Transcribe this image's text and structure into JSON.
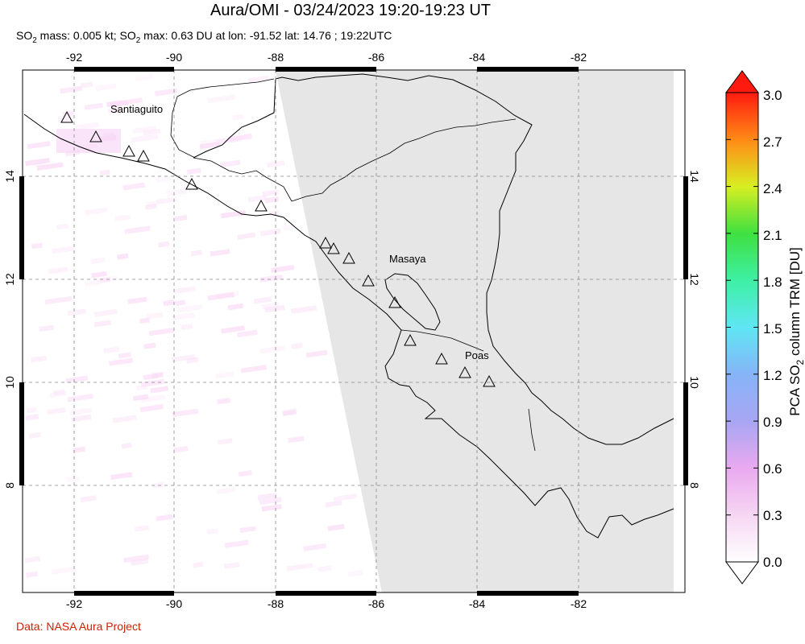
{
  "title": "Aura/OMI - 03/24/2023 19:20-19:23 UT",
  "subtitle": {
    "mass_prefix": "SO",
    "mass_sub": "2",
    "mass_text": " mass: 0.005 kt; SO",
    "max_sub": "2",
    "max_text": " max: 0.63 DU at lon: -91.52 lat: 14.76 ; 19:22UTC"
  },
  "credit": "Data: NASA Aura Project",
  "map": {
    "lon_ticks": [
      "-92",
      "-90",
      "-88",
      "-86",
      "-84",
      "-82"
    ],
    "lat_ticks": [
      "14",
      "12",
      "10",
      "8"
    ],
    "volcano_labels": [
      "Santiaguito",
      "Masaya",
      "Poas"
    ],
    "background_color": "#ffffff",
    "no_data_color": "#e6e6e6",
    "grid": "dashed"
  },
  "colorbar": {
    "label_prefix": "PCA SO",
    "label_sub": "2",
    "label_suffix": " column TRM [DU]",
    "ticks": [
      "3.0",
      "2.7",
      "2.4",
      "2.1",
      "1.8",
      "1.5",
      "1.2",
      "0.9",
      "0.6",
      "0.3",
      "0.0"
    ]
  }
}
